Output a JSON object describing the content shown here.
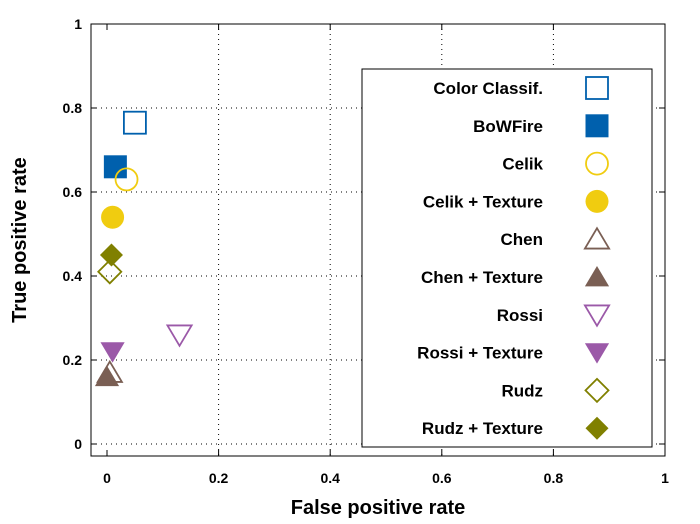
{
  "chart_data": {
    "type": "scatter",
    "title": "",
    "xlabel": "False positive rate",
    "ylabel": "True positive rate",
    "xlim": [
      0,
      1
    ],
    "ylim": [
      0,
      1
    ],
    "x_ticks": [
      "0",
      "0.2",
      "0.4",
      "0.6",
      "0.8",
      "1"
    ],
    "y_ticks": [
      "0",
      "0.2",
      "0.4",
      "0.6",
      "0.8",
      "1"
    ],
    "grid": "dotted",
    "legend_position": "right",
    "series": [
      {
        "name": "Color Classif.",
        "marker": "square-open",
        "color": "#0060ad",
        "points": [
          {
            "x": 0.05,
            "y": 0.765
          }
        ]
      },
      {
        "name": "BoWFire",
        "marker": "square-filled",
        "color": "#0060ad",
        "points": [
          {
            "x": 0.015,
            "y": 0.66
          }
        ]
      },
      {
        "name": "Celik",
        "marker": "circle-open",
        "color": "#f0cc10",
        "points": [
          {
            "x": 0.035,
            "y": 0.63
          }
        ]
      },
      {
        "name": "Celik + Texture",
        "marker": "circle-filled",
        "color": "#f0cc10",
        "points": [
          {
            "x": 0.01,
            "y": 0.54
          }
        ]
      },
      {
        "name": "Chen",
        "marker": "triangle-up-open",
        "color": "#7a5f54",
        "points": [
          {
            "x": 0.005,
            "y": 0.17
          }
        ]
      },
      {
        "name": "Chen + Texture",
        "marker": "triangle-up-filled",
        "color": "#7a5f54",
        "points": [
          {
            "x": 0.0,
            "y": 0.16
          }
        ]
      },
      {
        "name": "Rossi",
        "marker": "triangle-down-open",
        "color": "#9b59a8",
        "points": [
          {
            "x": 0.13,
            "y": 0.26
          }
        ]
      },
      {
        "name": "Rossi + Texture",
        "marker": "triangle-down-filled",
        "color": "#9b59a8",
        "points": [
          {
            "x": 0.01,
            "y": 0.22
          }
        ]
      },
      {
        "name": "Rudz",
        "marker": "diamond-open",
        "color": "#808000",
        "points": [
          {
            "x": 0.005,
            "y": 0.41
          }
        ]
      },
      {
        "name": "Rudz + Texture",
        "marker": "diamond-filled",
        "color": "#808000",
        "points": [
          {
            "x": 0.008,
            "y": 0.45
          }
        ]
      }
    ]
  }
}
